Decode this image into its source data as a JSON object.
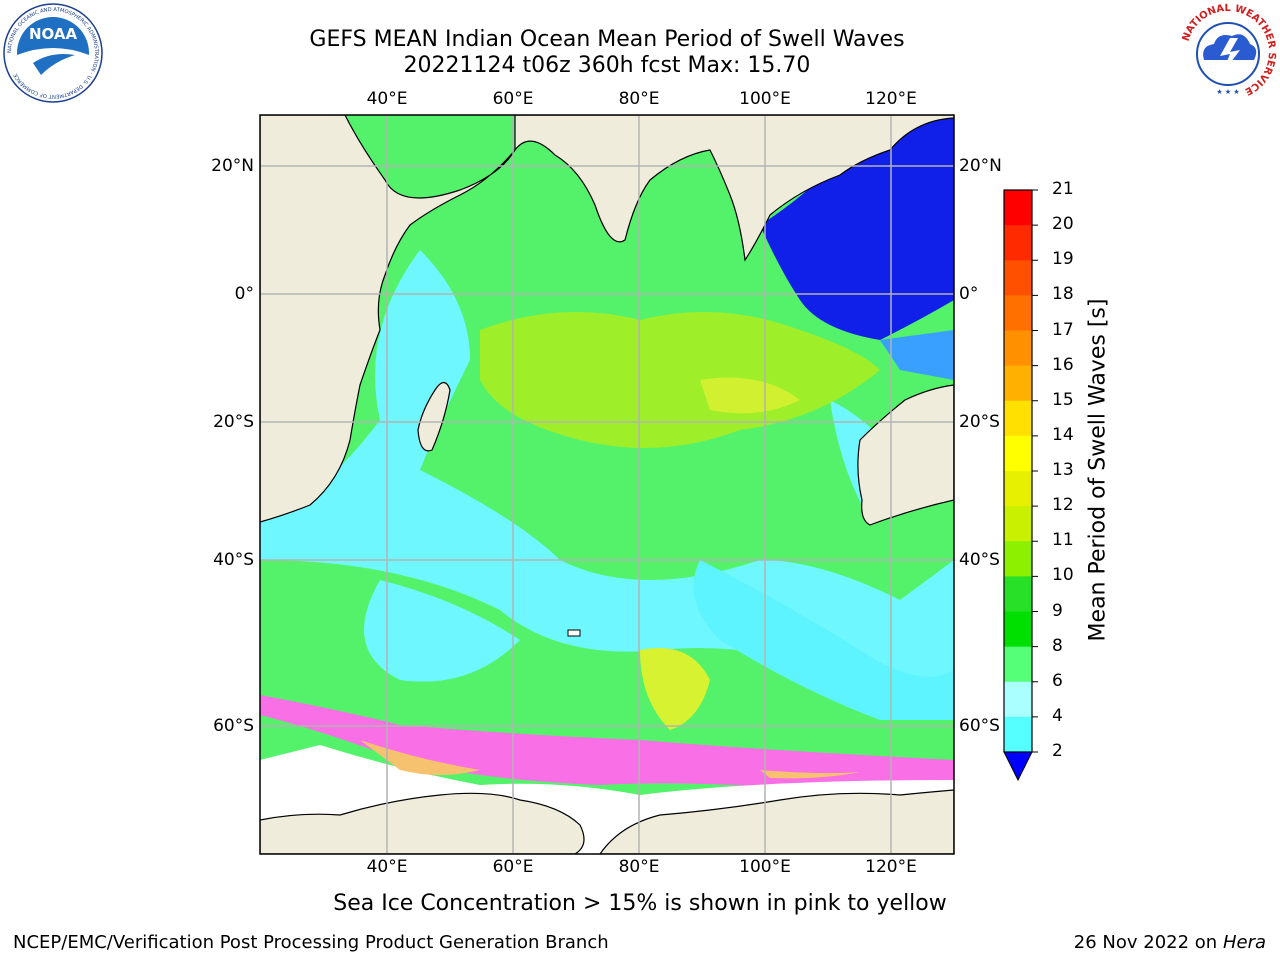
{
  "title": {
    "line1": "GEFS MEAN Indian Ocean Mean Period of Swell Waves",
    "line2": "20221124 t06z 360h fcst   Max: 15.70"
  },
  "map": {
    "lon_ticks_top": [
      "40°E",
      "60°E",
      "80°E",
      "100°E",
      "120°E"
    ],
    "lon_ticks_bottom": [
      "40°E",
      "60°E",
      "80°E",
      "100°E",
      "120°E"
    ],
    "lat_ticks_left": [
      "20°N",
      "0°",
      "20°S",
      "40°S",
      "60°S"
    ],
    "lat_ticks_right": [
      "20°N",
      "0°",
      "20°S",
      "40°S",
      "60°S"
    ],
    "extent_lon": [
      20,
      130
    ],
    "extent_lat": [
      -72,
      28
    ],
    "colors": {
      "land": "#efecdc",
      "grid": "#b3b3b3",
      "ice_low": "#ffffff"
    }
  },
  "colorbar": {
    "label": "Mean Period of Swell Waves [s]",
    "ticks": [
      "21",
      "20",
      "19",
      "18",
      "17",
      "16",
      "15",
      "14",
      "13",
      "12",
      "11",
      "10",
      "9",
      "8",
      "6",
      "4",
      "2"
    ],
    "colors": [
      "#ff0000",
      "#ff2a00",
      "#ff5000",
      "#ff7000",
      "#ff9000",
      "#ffb000",
      "#ffe000",
      "#ffff00",
      "#e6f000",
      "#c8f000",
      "#8cf000",
      "#28e028",
      "#00e000",
      "#55ff77",
      "#aaffff",
      "#55ffff",
      "#00ffff",
      "#00b4ff"
    ],
    "extend_color": "#0000ff"
  },
  "caption": "Sea Ice Concentration > 15% is shown in pink to yellow",
  "footer": {
    "left": "NCEP/EMC/Verification Post Processing Product Generation Branch",
    "right_date": "26 Nov 2022 on",
    "right_machine": "Hera"
  },
  "logos": {
    "noaa_text": "NOAA",
    "noaa_ring": "NATIONAL OCEANIC AND ATMOSPHERIC ADMINISTRATION · U.S. DEPARTMENT OF COMMERCE",
    "nws_ring": "NATIONAL WEATHER SERVICE"
  }
}
